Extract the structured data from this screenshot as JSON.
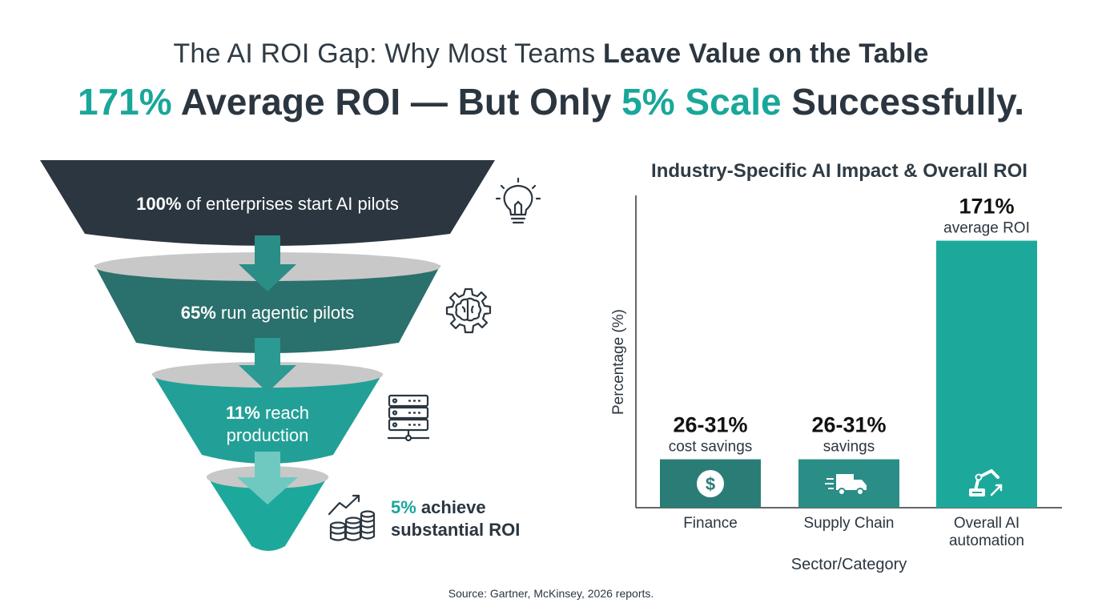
{
  "header": {
    "title_plain": "The AI ROI Gap: Why Most Teams ",
    "title_bold": "Leave Value on the Table",
    "headline_num1": "171%",
    "headline_mid": " Average ROI — But Only ",
    "headline_num2": "5% Scale",
    "headline_end": " Successfully."
  },
  "funnel": {
    "stage1": {
      "num": "100%",
      "text": " of enterprises start AI pilots",
      "icon": "lightbulb-icon"
    },
    "stage2": {
      "num": "65%",
      "text": " run agentic pilots",
      "icon": "brain-gear-icon"
    },
    "stage3": {
      "num": "11%",
      "text": " reach",
      "text2": "production",
      "icon": "server-icon"
    },
    "stage4": {
      "num": "5%",
      "text": " achieve",
      "text2": "substantial ROI",
      "icon": "coins-growth-icon"
    }
  },
  "colors": {
    "dark": "#2b3640",
    "teal_dark": "#2a706c",
    "teal_mid": "#2a8d86",
    "teal": "#1ca99b",
    "gray_rim": "#c8c8c8",
    "arrow_light": "#6fc9c0"
  },
  "chart_data": {
    "type": "bar",
    "title": "Industry-Specific AI Impact & Overall ROI",
    "xlabel": "Sector/Category",
    "ylabel": "Percentage (%)",
    "categories": [
      "Finance",
      "Supply Chain",
      "Overall AI automation"
    ],
    "values": [
      31,
      31,
      171
    ],
    "ranges": [
      "26-31%",
      "26-31%",
      "171%"
    ],
    "sublabels": [
      "cost savings",
      "savings",
      "average ROI"
    ],
    "bar_colors": [
      "#2a7d77",
      "#2a8d86",
      "#1ca99b"
    ],
    "icons": [
      "dollar-icon",
      "truck-icon",
      "robot-arm-icon"
    ],
    "ylim": [
      0,
      200
    ]
  },
  "source": "Source: Gartner, McKinsey, 2026 reports."
}
